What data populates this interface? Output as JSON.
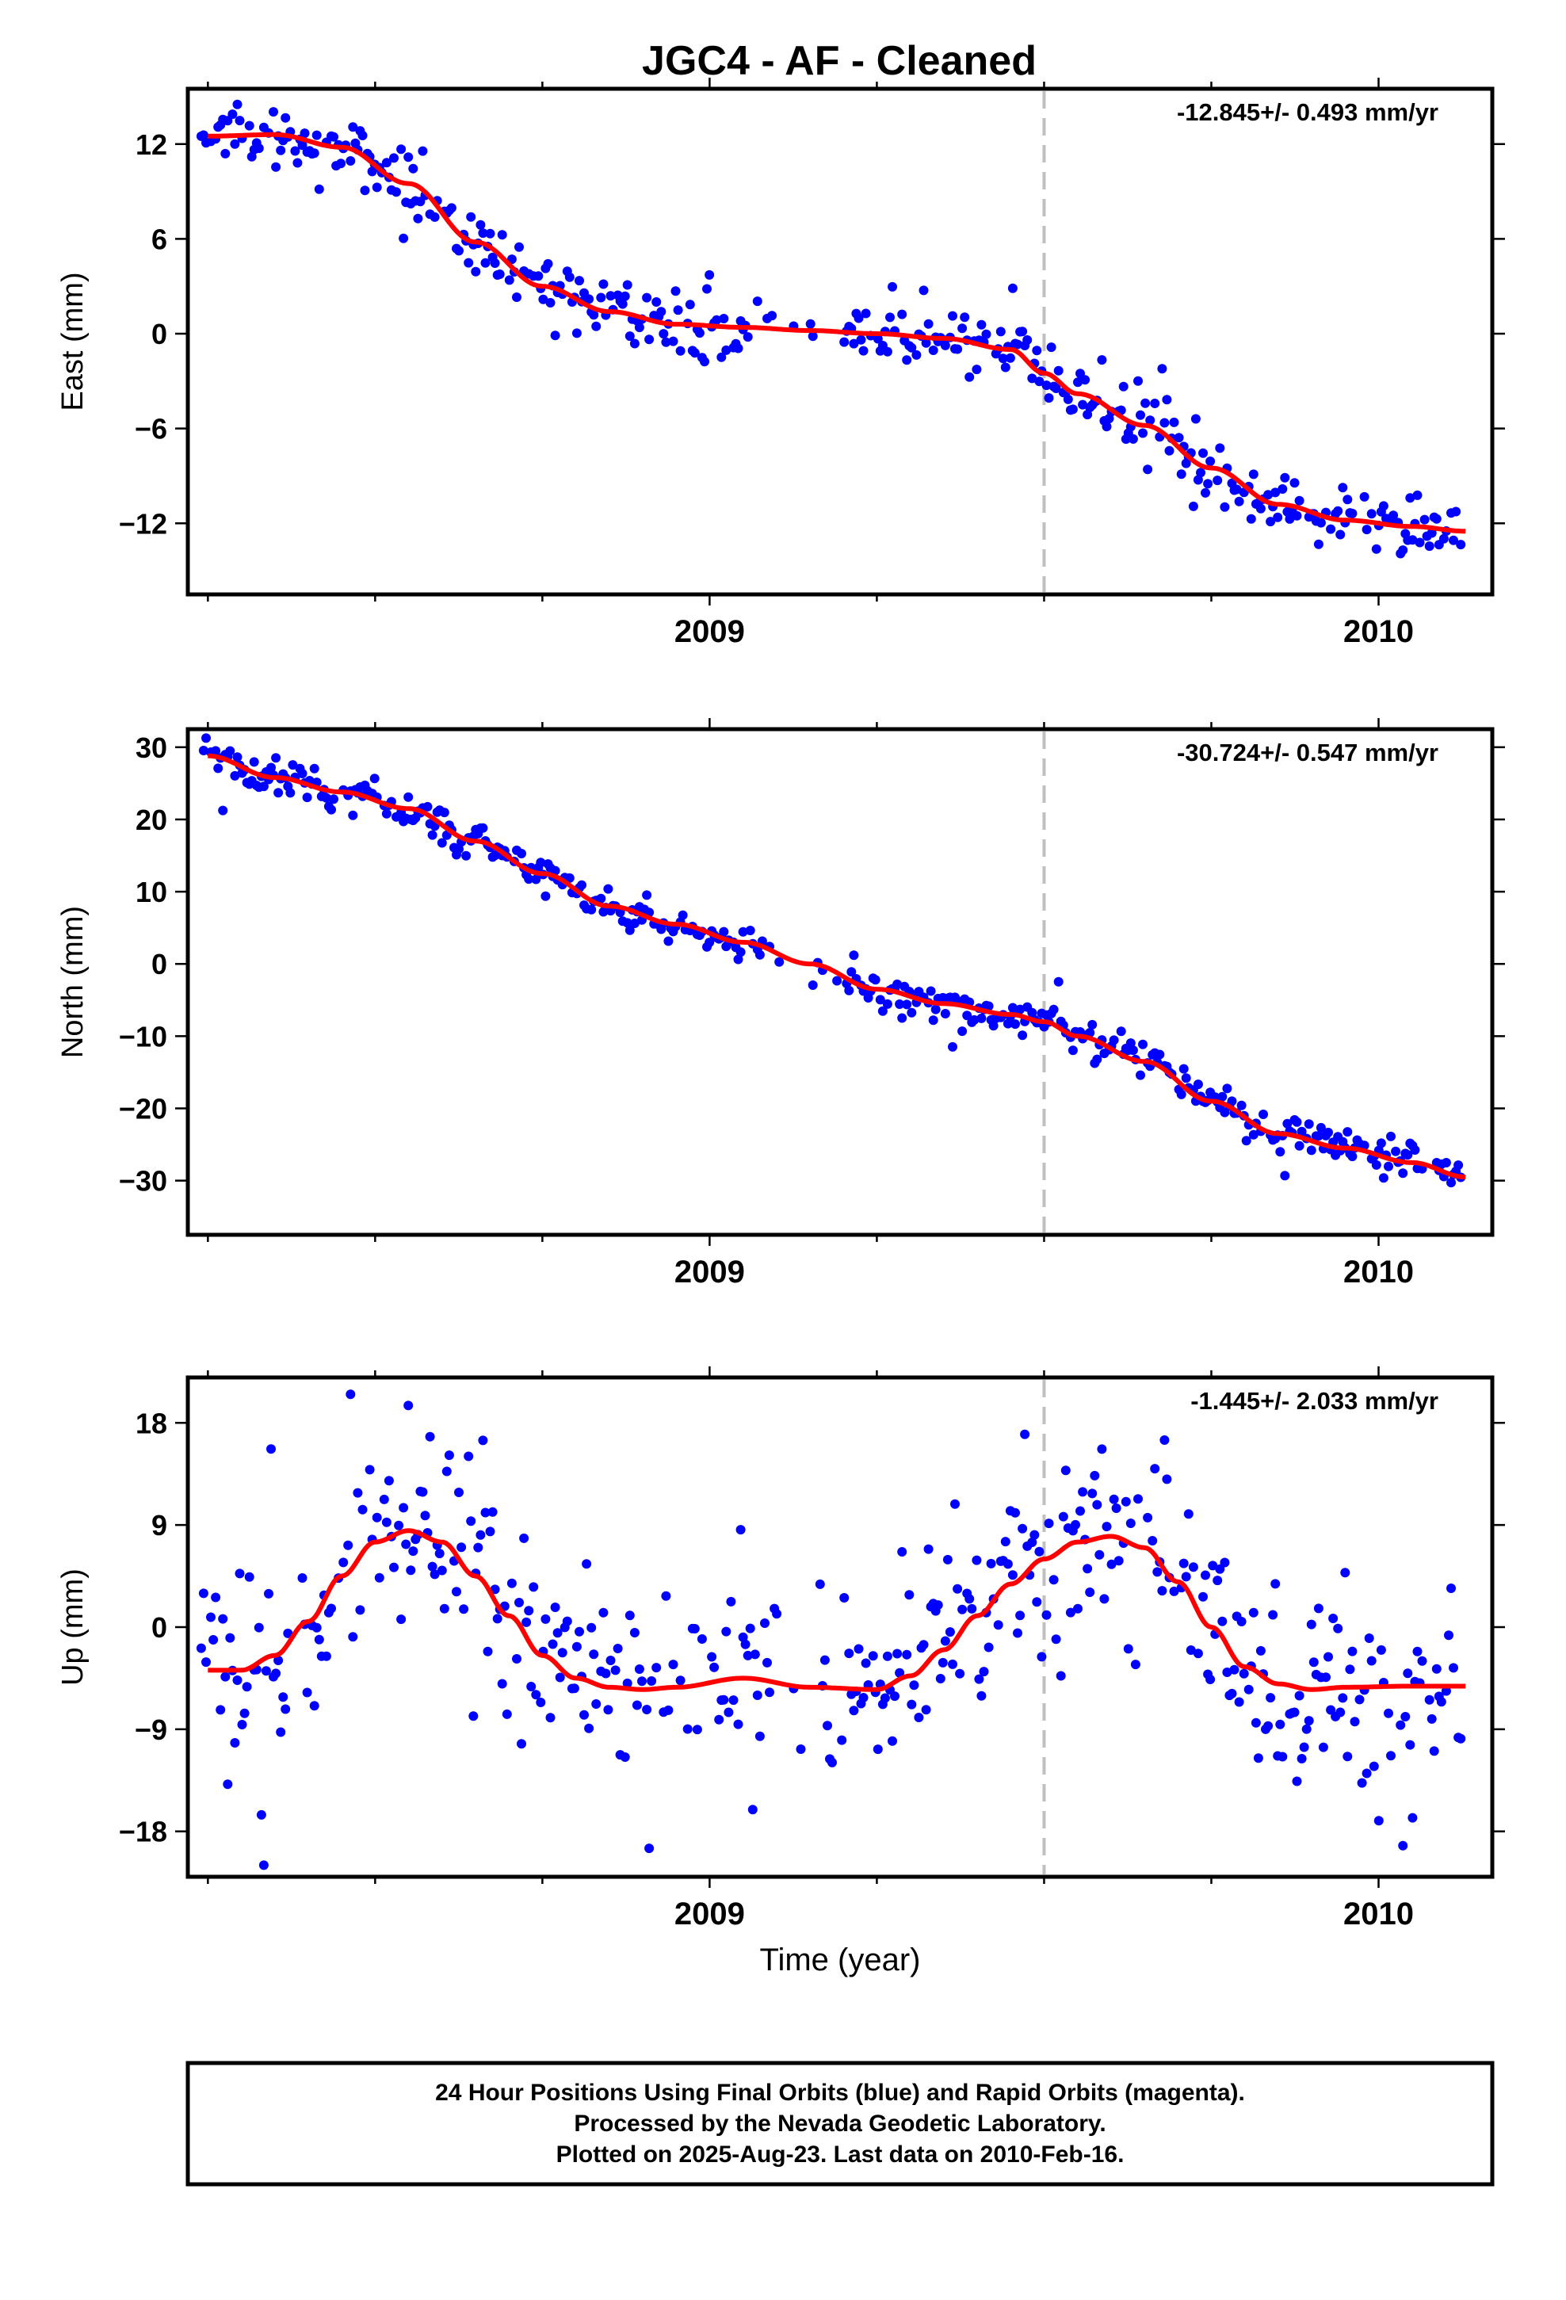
{
  "title": "JGC4  - AF - Cleaned",
  "colors": {
    "final": "#0000ff",
    "model": "#ff0000",
    "event": "#c0c0c0",
    "frame": "#000000"
  },
  "footer": {
    "line1": "24 Hour Positions Using Final Orbits (blue) and Rapid Orbits (magenta).",
    "line2": "Processed by the Nevada Geodetic Laboratory.",
    "line3": "Plotted on 2025-Aug-23. Last data on 2010-Feb-16."
  },
  "chart_data": [
    {
      "type": "scatter",
      "ylabel": "East (mm)",
      "xlabel": "",
      "rate_label": "-12.845+/- 0.493 mm/yr",
      "xlim": [
        2008.22,
        2010.17
      ],
      "ylim": [
        -16.5,
        15.5
      ],
      "yticks": [
        12,
        6,
        0,
        -6,
        -12
      ],
      "ytick_labels": [
        "12",
        "6",
        "0",
        "−6",
        "−12"
      ],
      "xtick_labels": [
        "2009",
        "2010"
      ],
      "xticks": [
        2009,
        2010
      ],
      "event_line_x": 2009.5,
      "model": {
        "x": [
          2008.25,
          2008.35,
          2008.45,
          2008.55,
          2008.65,
          2008.75,
          2008.85,
          2008.95,
          2009.05,
          2009.15,
          2009.25,
          2009.35,
          2009.45,
          2009.5,
          2009.55,
          2009.65,
          2009.75,
          2009.85,
          2009.95,
          2010.05,
          2010.13
        ],
        "y": [
          12.5,
          12.6,
          11.8,
          9.5,
          5.8,
          3.0,
          1.4,
          0.6,
          0.4,
          0.2,
          0.0,
          -0.3,
          -1.0,
          -2.5,
          -3.8,
          -5.8,
          -8.5,
          -10.8,
          -11.8,
          -12.2,
          -12.5
        ]
      }
    },
    {
      "type": "scatter",
      "ylabel": "North (mm)",
      "xlabel": "",
      "rate_label": "-30.724+/- 0.547 mm/yr",
      "xlim": [
        2008.22,
        2010.17
      ],
      "ylim": [
        -37.5,
        32.5
      ],
      "yticks": [
        30,
        20,
        10,
        0,
        -10,
        -20,
        -30
      ],
      "ytick_labels": [
        "30",
        "20",
        "10",
        "0",
        "−10",
        "−20",
        "−30"
      ],
      "xtick_labels": [
        "2009",
        "2010"
      ],
      "xticks": [
        2009,
        2010
      ],
      "event_line_x": 2009.5,
      "model": {
        "x": [
          2008.25,
          2008.35,
          2008.45,
          2008.55,
          2008.65,
          2008.75,
          2008.85,
          2008.95,
          2009.05,
          2009.15,
          2009.25,
          2009.35,
          2009.45,
          2009.5,
          2009.55,
          2009.65,
          2009.75,
          2009.85,
          2009.95,
          2010.05,
          2010.13
        ],
        "y": [
          28.8,
          25.8,
          23.8,
          21.5,
          17.0,
          12.5,
          8.0,
          5.5,
          3.0,
          0.0,
          -3.5,
          -5.5,
          -7.0,
          -8.0,
          -10.0,
          -13.5,
          -19.0,
          -23.5,
          -25.5,
          -27.5,
          -29.5
        ]
      }
    },
    {
      "type": "scatter",
      "ylabel": "Up (mm)",
      "xlabel": "Time (year)",
      "rate_label": "-1.445+/- 2.033 mm/yr",
      "xlim": [
        2008.22,
        2010.17
      ],
      "ylim": [
        -22,
        22
      ],
      "yticks": [
        18,
        9,
        0,
        -9,
        -18
      ],
      "ytick_labels": [
        "18",
        "9",
        "0",
        "−9",
        "−18"
      ],
      "xtick_labels": [
        "2009",
        "2010"
      ],
      "xticks": [
        2009,
        2010
      ],
      "event_line_x": 2009.5,
      "model": {
        "x": [
          2008.25,
          2008.3,
          2008.35,
          2008.4,
          2008.45,
          2008.5,
          2008.55,
          2008.6,
          2008.65,
          2008.7,
          2008.75,
          2008.8,
          2008.85,
          2008.9,
          2008.95,
          2009.05,
          2009.15,
          2009.25,
          2009.3,
          2009.35,
          2009.4,
          2009.45,
          2009.5,
          2009.55,
          2009.6,
          2009.65,
          2009.7,
          2009.75,
          2009.8,
          2009.85,
          2009.9,
          2009.95,
          2010.05,
          2010.13
        ],
        "y": [
          -3.8,
          -3.8,
          -2.5,
          0.5,
          4.5,
          7.5,
          8.5,
          7.5,
          4.5,
          1.0,
          -2.5,
          -4.5,
          -5.3,
          -5.5,
          -5.3,
          -4.5,
          -5.3,
          -5.5,
          -4.3,
          -2.0,
          1.0,
          3.8,
          6.0,
          7.5,
          8.0,
          7.0,
          4.0,
          0.0,
          -3.5,
          -5.0,
          -5.5,
          -5.3,
          -5.2,
          -5.2
        ]
      },
      "segments": [
        {
          "from": 2008.22,
          "to": 2009.5,
          "shift": 0
        },
        {
          "from": 2009.5,
          "to": 2010.17,
          "shift": 0
        }
      ]
    }
  ]
}
